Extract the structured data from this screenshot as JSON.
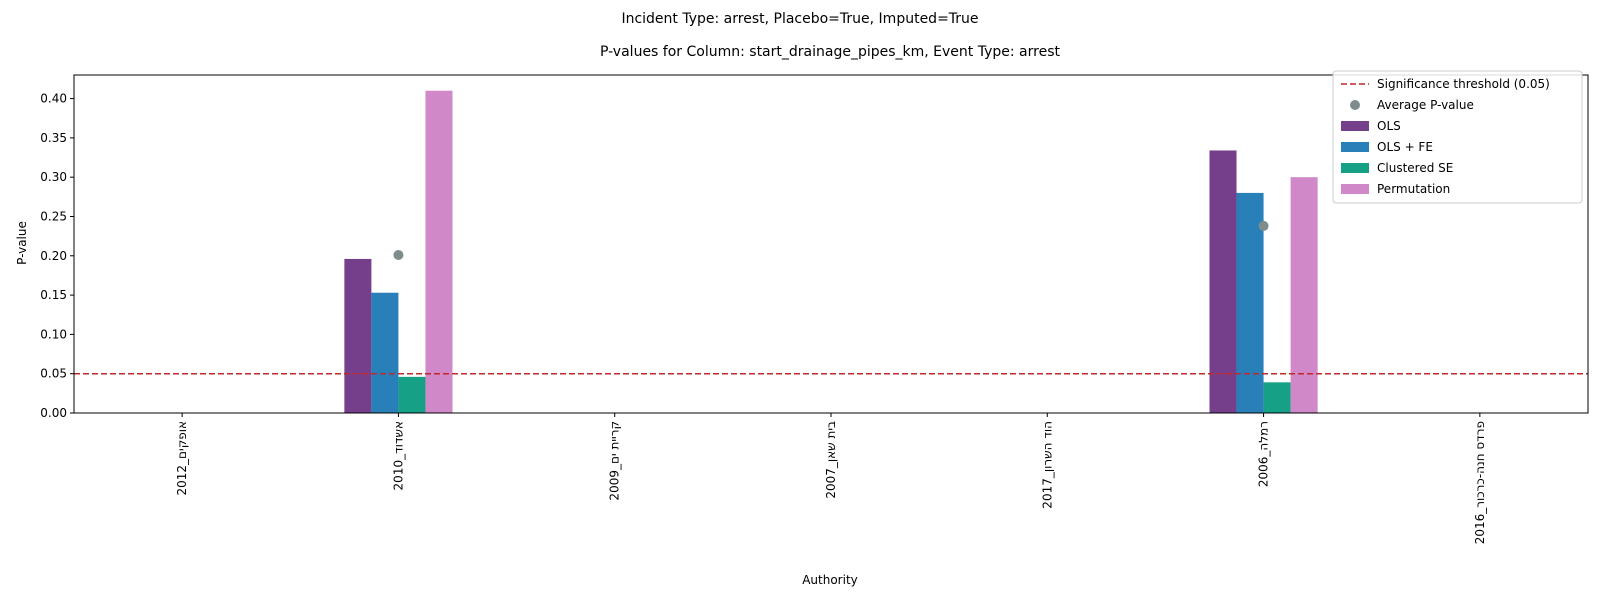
{
  "chart_data": {
    "type": "bar",
    "suptitle": "Incident Type: arrest, Placebo=True, Imputed=True",
    "title": "P-values for Column: start_drainage_pipes_km, Event Type: arrest",
    "xlabel": "Authority",
    "ylabel": "P-value",
    "ylim": [
      0,
      0.43
    ],
    "yticks": [
      0.0,
      0.05,
      0.1,
      0.15,
      0.2,
      0.25,
      0.3,
      0.35,
      0.4
    ],
    "ytick_labels": [
      "0.00",
      "0.05",
      "0.10",
      "0.15",
      "0.20",
      "0.25",
      "0.30",
      "0.35",
      "0.40"
    ],
    "categories": [
      "אופקים_2012",
      "אשדוד_2010",
      "קריית ים_2009",
      "בית שאן_2007",
      "הוד השרון_2017",
      "רמלה_2006",
      "פרדס חנה-כרכור_2016"
    ],
    "series": [
      {
        "name": "OLS",
        "color": "#763f8b",
        "values": [
          null,
          0.196,
          null,
          null,
          null,
          0.334,
          null
        ]
      },
      {
        "name": "OLS + FE",
        "color": "#2980b9",
        "values": [
          null,
          0.153,
          null,
          null,
          null,
          0.28,
          null
        ]
      },
      {
        "name": "Clustered SE",
        "color": "#16a085",
        "values": [
          null,
          0.046,
          null,
          null,
          null,
          0.039,
          null
        ]
      },
      {
        "name": "Permutation",
        "color": "#d088c8",
        "values": [
          null,
          0.41,
          null,
          null,
          null,
          0.3,
          null
        ]
      }
    ],
    "average": {
      "name": "Average P-value",
      "color": "#7f8c8d",
      "values": [
        null,
        0.201,
        null,
        null,
        null,
        0.238,
        null
      ]
    },
    "threshold": {
      "name": "Significance threshold (0.05)",
      "value": 0.05,
      "color": "#c0282d"
    },
    "legend_position": "top-right",
    "grid": false
  }
}
